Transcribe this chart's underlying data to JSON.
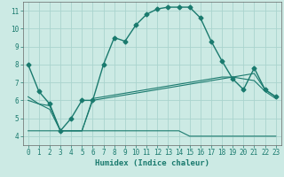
{
  "title": "",
  "xlabel": "Humidex (Indice chaleur)",
  "ylabel": "",
  "xlim": [
    -0.5,
    23.5
  ],
  "ylim": [
    3.5,
    11.5
  ],
  "xticks": [
    0,
    1,
    2,
    3,
    4,
    5,
    6,
    7,
    8,
    9,
    10,
    11,
    12,
    13,
    14,
    15,
    16,
    17,
    18,
    19,
    20,
    21,
    22,
    23
  ],
  "yticks": [
    4,
    5,
    6,
    7,
    8,
    9,
    10,
    11
  ],
  "background_color": "#cceae4",
  "grid_color": "#aad4ce",
  "line_color": "#1a7a6e",
  "series": [
    {
      "x": [
        0,
        1,
        2,
        3,
        4,
        5,
        6,
        7,
        8,
        9,
        10,
        11,
        12,
        13,
        14,
        15,
        16,
        17,
        18,
        19,
        20,
        21,
        22,
        23
      ],
      "y": [
        8.0,
        6.5,
        5.8,
        4.3,
        5.0,
        6.0,
        6.0,
        8.0,
        9.5,
        9.3,
        10.2,
        10.8,
        11.1,
        11.2,
        11.2,
        11.2,
        10.6,
        9.3,
        8.2,
        7.2,
        6.6,
        7.8,
        6.6,
        6.2
      ],
      "marker": "D",
      "markersize": 2.5,
      "linewidth": 1.0
    },
    {
      "x": [
        0,
        1,
        2,
        3,
        4,
        5,
        6,
        7,
        8,
        9,
        10,
        11,
        12,
        13,
        14,
        15,
        16,
        17,
        18,
        19,
        20,
        21,
        22,
        23
      ],
      "y": [
        6.0,
        5.8,
        5.7,
        4.3,
        4.3,
        4.3,
        6.0,
        6.1,
        6.2,
        6.3,
        6.4,
        6.5,
        6.6,
        6.7,
        6.8,
        6.9,
        7.0,
        7.1,
        7.2,
        7.3,
        7.4,
        7.5,
        6.6,
        6.2
      ],
      "marker": null,
      "markersize": 0,
      "linewidth": 0.8
    },
    {
      "x": [
        0,
        1,
        2,
        3,
        4,
        5,
        6,
        7,
        8,
        9,
        10,
        11,
        12,
        13,
        14,
        15,
        16,
        17,
        18,
        19,
        20,
        21,
        22,
        23
      ],
      "y": [
        6.2,
        5.8,
        5.5,
        4.3,
        4.3,
        4.3,
        6.1,
        6.2,
        6.3,
        6.4,
        6.5,
        6.6,
        6.7,
        6.8,
        6.9,
        7.0,
        7.1,
        7.2,
        7.3,
        7.3,
        7.2,
        7.1,
        6.5,
        6.1
      ],
      "marker": null,
      "markersize": 0,
      "linewidth": 0.8
    },
    {
      "x": [
        0,
        1,
        2,
        3,
        4,
        5,
        6,
        7,
        8,
        9,
        10,
        11,
        12,
        13,
        14,
        15,
        16,
        17,
        18,
        19,
        20,
        21,
        22,
        23
      ],
      "y": [
        4.3,
        4.3,
        4.3,
        4.3,
        4.3,
        4.3,
        4.3,
        4.3,
        4.3,
        4.3,
        4.3,
        4.3,
        4.3,
        4.3,
        4.3,
        4.0,
        4.0,
        4.0,
        4.0,
        4.0,
        4.0,
        4.0,
        4.0,
        4.0
      ],
      "marker": null,
      "markersize": 0,
      "linewidth": 0.8
    }
  ]
}
